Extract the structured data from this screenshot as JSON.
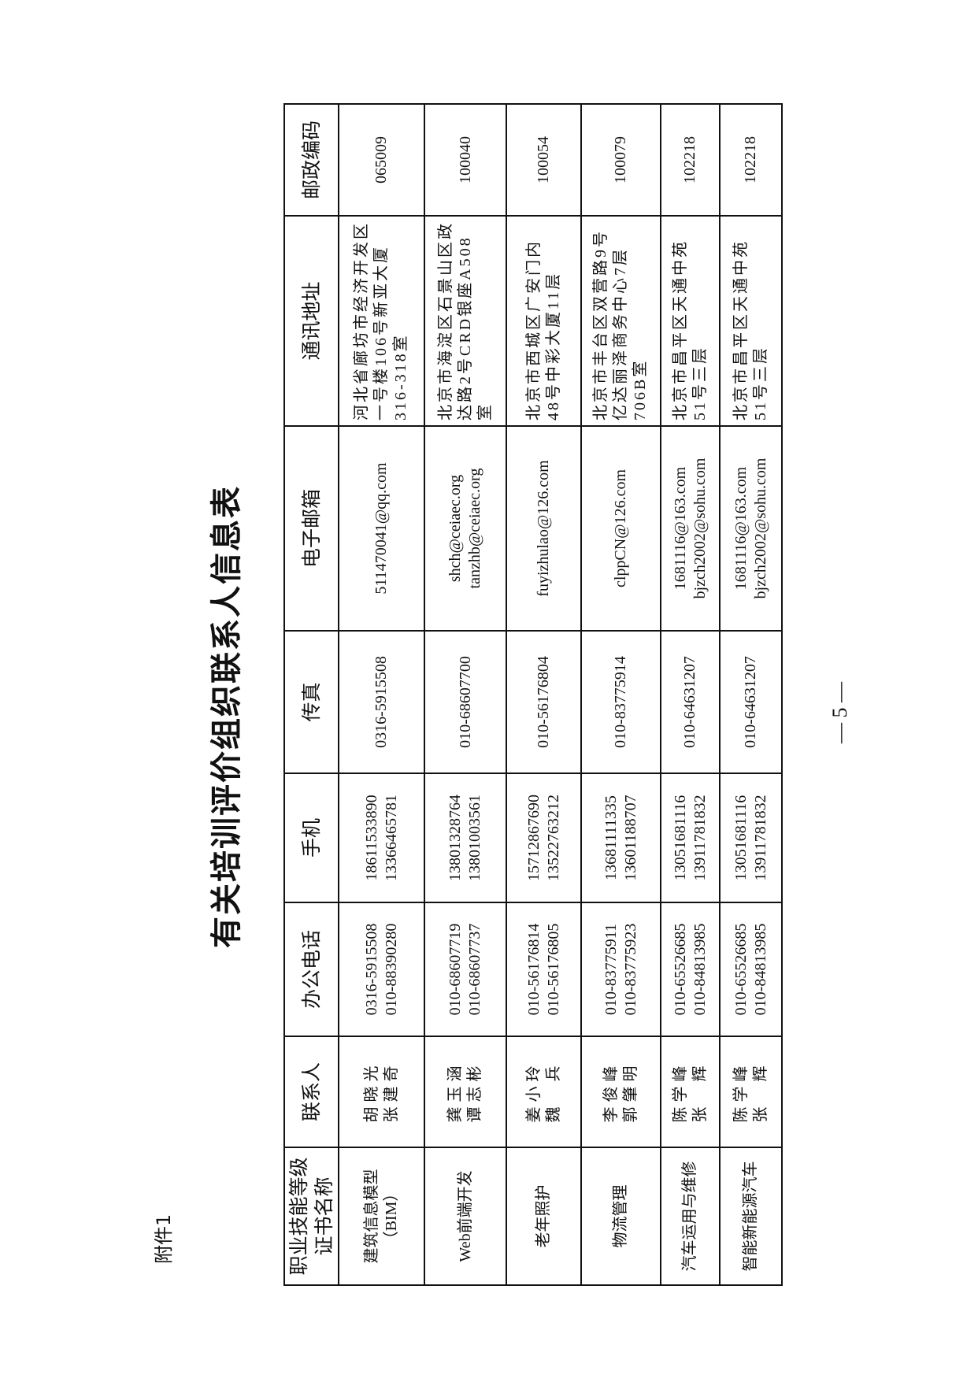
{
  "attachment_label": "附件1",
  "title": "有关培训评价组织联系人信息表",
  "page_number": "— 5 —",
  "table": {
    "headers": [
      "职业技能等级证书名称",
      "联系人",
      "办公电话",
      "手机",
      "传真",
      "电子邮箱",
      "通讯地址",
      "邮政编码"
    ],
    "rows": [
      {
        "cert": "建筑信息模型（BIM）",
        "contacts": [
          "胡晓光",
          "张建奇"
        ],
        "office": [
          "0316-5915508",
          "010-88390280"
        ],
        "mobile": [
          "18611533890",
          "13366465781"
        ],
        "fax": "0316-5915508",
        "email": [
          "511470041@qq.com"
        ],
        "address": "河北省廊坊市经济开发区一号楼106号新亚大厦316-318室",
        "postcode": "065009"
      },
      {
        "cert": "Web前端开发",
        "contacts": [
          "龚玉涵",
          "谭志彬"
        ],
        "office": [
          "010-68607719",
          "010-68607737"
        ],
        "mobile": [
          "13801328764",
          "13801003561"
        ],
        "fax": "010-68607700",
        "email": [
          "shch@ceiaec.org",
          "tanzhb@ceiaec.org"
        ],
        "address": "北京市海淀区石景山区政达路2号CRD银座A508室",
        "postcode": "100040"
      },
      {
        "cert": "老年照护",
        "contacts": [
          "姜小玲",
          "魏　兵"
        ],
        "office": [
          "010-56176814",
          "010-56176805"
        ],
        "mobile": [
          "15712867690",
          "13522763212"
        ],
        "fax": "010-56176804",
        "email": [
          "fuyizhulao@126.com"
        ],
        "address": "北京市西城区广安门内48号中彩大厦11层",
        "postcode": "100054"
      },
      {
        "cert": "物流管理",
        "contacts": [
          "李俊峰",
          "郭肇明"
        ],
        "office": [
          "010-83775911",
          "010-83775923"
        ],
        "mobile": [
          "13681111335",
          "13601188707"
        ],
        "fax": "010-83775914",
        "email": [
          "clppCN@126.com"
        ],
        "address": "北京市丰台区双营路9号亿达丽泽商务中心7层706B室",
        "postcode": "100079"
      },
      {
        "cert": "汽车运用与维修",
        "contacts": [
          "陈学峰",
          "张　辉"
        ],
        "office": [
          "010-65526685",
          "010-84813985"
        ],
        "mobile": [
          "13051681116",
          "13911781832"
        ],
        "fax": "010-64631207",
        "email": [
          "1681116@163.com",
          "bjzch2002@sohu.com"
        ],
        "address": "北京市昌平区天通中苑51号三层",
        "postcode": "102218"
      },
      {
        "cert": "智能新能源汽车",
        "contacts": [
          "陈学峰",
          "张　辉"
        ],
        "office": [
          "010-65526685",
          "010-84813985"
        ],
        "mobile": [
          "13051681116",
          "13911781832"
        ],
        "fax": "010-64631207",
        "email": [
          "1681116@163.com",
          "bjzch2002@sohu.com"
        ],
        "address": "北京市昌平区天通中苑51号三层",
        "postcode": "102218"
      }
    ]
  }
}
